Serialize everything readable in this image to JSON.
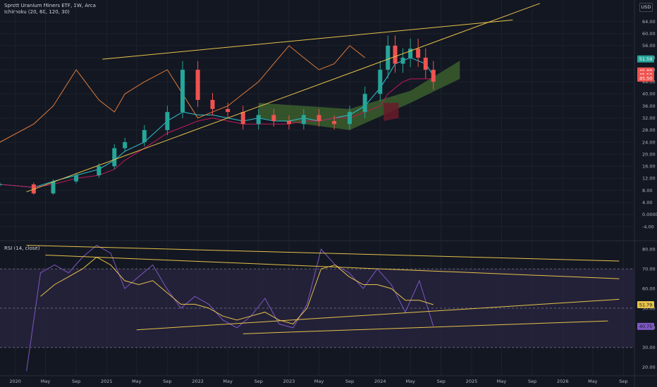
{
  "header": {
    "title": "Sprott Uranium Miners ETF, 1W, Arca",
    "indicator": "Ichimoku (20, 60, 120, 30)",
    "currency": "USD"
  },
  "rsi_panel": {
    "label": "RSI (14, close)"
  },
  "colors": {
    "background": "#131722",
    "up": "#26a69a",
    "down": "#ef5350",
    "conversion": "#2ec4d6",
    "base": "#c2185b",
    "lagging": "#e07b39",
    "cloud_bull": "#3b5e2c",
    "cloud_bear": "#6a1b2a",
    "trendline": "#e6c24a",
    "rsi_line": "#7e57c2",
    "rsi_band": "#2a2540"
  },
  "chart_data": [
    {
      "type": "line",
      "title": "Sprott Uranium Miners ETF, 1W, Arca",
      "y_axis": {
        "ticks": [
          "64.00",
          "60.00",
          "56.00",
          "52.00",
          "48.00",
          "44.00",
          "40.00",
          "36.00",
          "32.00",
          "28.00",
          "24.00",
          "20.00",
          "16.00",
          "12.00",
          "8.00",
          "4.00",
          "0.0000",
          "-4.00"
        ],
        "ylim": [
          -4,
          66
        ],
        "price_tags": [
          {
            "label": "51.59",
            "value": 51.59,
            "color": "#26a69a"
          },
          {
            "label": "45.89",
            "value": 47.6,
            "color": "#ef5350"
          },
          {
            "label": "45.50",
            "value": 46.4,
            "color": "#ef5350"
          },
          {
            "label": "45.50",
            "value": 45.2,
            "color": "#ef5350"
          }
        ]
      },
      "x_axis": {
        "ticks": [
          "2020",
          "May",
          "Sep",
          "2021",
          "May",
          "Sep",
          "2022",
          "May",
          "Sep",
          "2023",
          "May",
          "Sep",
          "2024",
          "May",
          "Sep",
          "2025",
          "May",
          "Sep",
          "2026",
          "May",
          "Sep"
        ]
      },
      "price_series": {
        "x_dates": [
          "2019-11-01",
          "2020-03-15",
          "2020-06-01",
          "2020-09-01",
          "2020-12-01",
          "2021-02-01",
          "2021-03-15",
          "2021-06-01",
          "2021-09-01",
          "2021-11-01",
          "2022-01-01",
          "2022-03-01",
          "2022-05-01",
          "2022-07-01",
          "2022-09-01",
          "2022-11-01",
          "2023-01-01",
          "2023-03-01",
          "2023-05-01",
          "2023-07-01",
          "2023-09-01",
          "2023-11-01",
          "2024-01-01",
          "2024-02-01",
          "2024-03-01",
          "2024-04-01",
          "2024-05-01",
          "2024-06-01",
          "2024-07-01",
          "2024-08-01"
        ],
        "close": [
          10,
          7,
          11,
          13,
          16,
          22,
          24,
          28,
          34,
          48,
          38,
          35,
          34,
          30,
          33,
          31,
          30,
          33,
          31,
          30,
          34,
          40,
          48,
          56,
          50,
          52,
          55,
          52,
          48,
          44
        ]
      },
      "series": [
        {
          "name": "Conversion Line",
          "color": "#2ec4d6",
          "values": [
            10,
            9,
            11,
            13,
            15,
            18,
            21,
            24,
            31,
            34,
            33,
            33,
            32,
            31,
            32,
            31,
            31,
            32,
            31,
            32,
            33,
            36,
            42,
            46,
            50,
            51,
            52,
            51,
            50,
            46
          ]
        },
        {
          "name": "Base Line",
          "color": "#c2185b",
          "values": [
            10,
            9,
            10,
            12,
            13,
            15,
            18,
            22,
            27,
            29,
            31,
            32,
            31,
            30,
            30,
            30,
            30,
            31,
            31,
            32,
            32,
            34,
            36,
            40,
            42,
            44,
            45,
            45,
            45,
            45
          ]
        },
        {
          "name": "Lagging Span",
          "color": "#e07b39",
          "values": [
            24,
            30,
            36,
            48,
            38,
            34,
            40,
            44,
            48,
            40,
            32,
            34,
            36,
            40,
            44,
            50,
            56,
            52,
            48,
            50,
            56,
            52,
            null,
            null,
            null,
            null,
            null,
            null,
            null,
            null
          ]
        }
      ],
      "cloud": {
        "bull_range": [
          "2022-09-01",
          "2023-09-01",
          "2024-05-01",
          "2024-11-15"
        ],
        "bear_range": [
          "2024-01-15",
          "2024-03-15"
        ],
        "bull_top": [
          37,
          35,
          41,
          51
        ],
        "bull_bottom": [
          32,
          28,
          37,
          45
        ],
        "bear_top": [
          37,
          37
        ],
        "bear_bottom": [
          31,
          32
        ]
      },
      "trendlines": [
        {
          "from": [
            "2020-02-15",
            7.5
          ],
          "to": [
            "2025-10-01",
            70
          ]
        },
        {
          "from": [
            "2020-12-15",
            51.5
          ],
          "to": [
            "2025-06-15",
            64.5
          ]
        }
      ]
    },
    {
      "type": "line",
      "title": "RSI (14, close)",
      "y_axis": {
        "ticks": [
          "80.00",
          "70.00",
          "60.00",
          "50.00",
          "40.00",
          "30.00",
          "20.00"
        ],
        "ylim": [
          16,
          84
        ],
        "bands": [
          30,
          70
        ],
        "mid": 50,
        "tags": [
          {
            "label": "51.79",
            "value": 51.79,
            "color": "#e6c24a"
          },
          {
            "label": "40.75",
            "value": 40.75,
            "color": "#7e57c2"
          }
        ]
      },
      "series": [
        {
          "name": "RSI",
          "color": "#7e57c2",
          "values": [
            18,
            68,
            72,
            68,
            76,
            82,
            78,
            60,
            66,
            72,
            60,
            50,
            56,
            52,
            44,
            40,
            46,
            55,
            42,
            40,
            52,
            80,
            72,
            68,
            60,
            70,
            62,
            48,
            64,
            40.75
          ]
        },
        {
          "name": "RSI-based MA",
          "color": "#e6c24a",
          "values": [
            null,
            56,
            62,
            66,
            70,
            76,
            72,
            64,
            62,
            64,
            58,
            52,
            52,
            50,
            46,
            44,
            46,
            48,
            44,
            42,
            50,
            70,
            72,
            66,
            62,
            62,
            60,
            54,
            54,
            51.79
          ]
        }
      ],
      "trendlines": [
        {
          "from": [
            "2020-02-15",
            82
          ],
          "to": [
            "2026-08-15",
            74
          ]
        },
        {
          "from": [
            "2020-05-01",
            77
          ],
          "to": [
            "2026-08-15",
            65
          ]
        },
        {
          "from": [
            "2021-05-01",
            39
          ],
          "to": [
            "2026-08-15",
            54.5
          ]
        },
        {
          "from": [
            "2022-07-01",
            37
          ],
          "to": [
            "2026-07-01",
            43.5
          ]
        }
      ]
    }
  ]
}
